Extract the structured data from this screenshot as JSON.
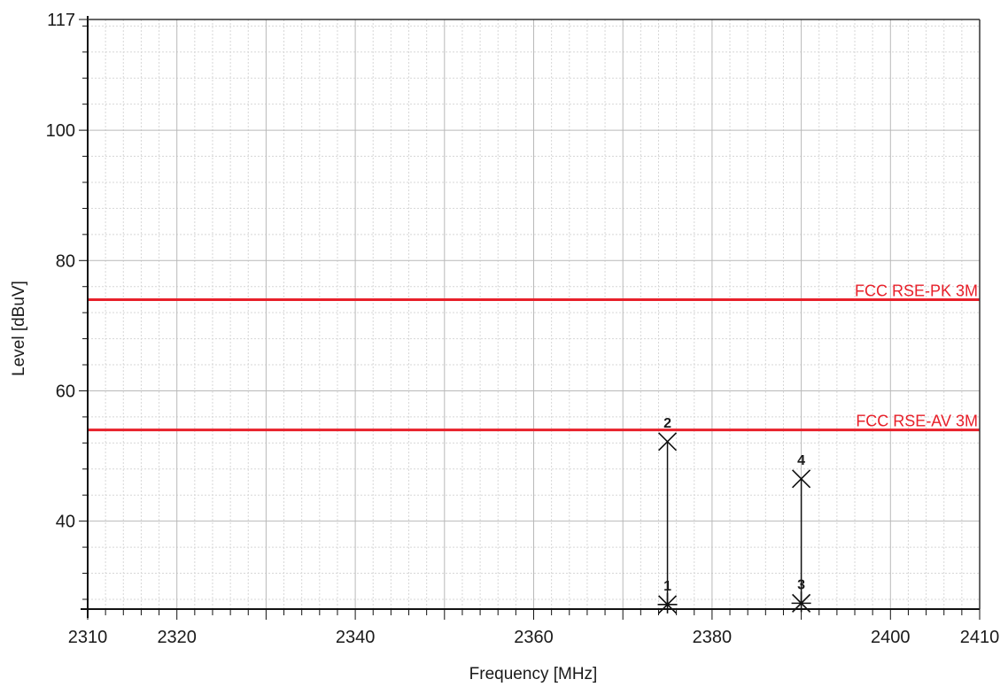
{
  "chart_data": {
    "type": "line",
    "xlabel": "Frequency [MHz]",
    "ylabel": "Level [dBuV]",
    "xlim": [
      2310,
      2410
    ],
    "ylim": [
      26.5,
      117
    ],
    "x_ticks": [
      2310,
      2320,
      2340,
      2360,
      2380,
      2400,
      2410
    ],
    "y_ticks": [
      40,
      60,
      80,
      100,
      117
    ],
    "x_tick_labels": [
      "2310",
      "2320",
      "2340",
      "2360",
      "2380",
      "2400",
      "2410"
    ],
    "y_tick_labels": [
      "40",
      "60",
      "80",
      "100",
      "117"
    ],
    "grid": true,
    "limit_lines": [
      {
        "name": "FCC RSE-PK 3M",
        "level": 74,
        "color": "#e8202a"
      },
      {
        "name": "FCC RSE-AV 3M",
        "level": 54,
        "color": "#e8202a"
      }
    ],
    "markers": [
      {
        "label": "1",
        "frequency": 2375,
        "level": 27.2,
        "shape": "asterisk"
      },
      {
        "label": "2",
        "frequency": 2375,
        "level": 52.2,
        "shape": "x"
      },
      {
        "label": "3",
        "frequency": 2390,
        "level": 27.4,
        "shape": "asterisk"
      },
      {
        "label": "4",
        "frequency": 2390,
        "level": 46.5,
        "shape": "x"
      }
    ],
    "stems": [
      {
        "frequency": 2375,
        "from": 27.2,
        "to": 52.2
      },
      {
        "frequency": 2390,
        "from": 27.4,
        "to": 46.5
      }
    ]
  }
}
